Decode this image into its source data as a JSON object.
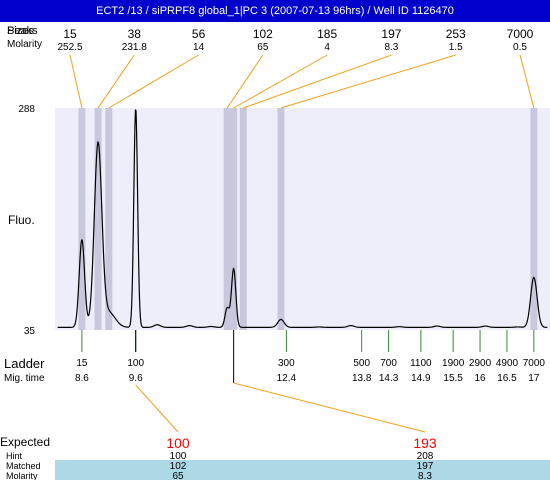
{
  "window": {
    "title": "ECT2 /13 / siPRPF8 global_1|PC 3 (2007-07-13 96hrs) / Well ID 1126470"
  },
  "header_rows": {
    "peaks_label": "Peaks",
    "sizes_label": "Sizes",
    "molarity_label": "Molarity"
  },
  "left_labels": {
    "y_axis": "Fluo.",
    "ladder": "Ladder",
    "mig_time": "Mig. time"
  },
  "bottom_rows": {
    "expected_label": "Expected",
    "hint_label": "Hint",
    "matched_label": "Matched",
    "molarity_label": "Molarity"
  },
  "colors": {
    "title_bar": "#0000cc",
    "plot_background": "#eeeefa",
    "peak_band": "#c8c8dc",
    "connector": "#f0a020",
    "ladder_tick": "#2e8b2e",
    "expected_value": "#ff0000",
    "matched_band": "#add8e6",
    "trace": "#000000"
  },
  "chart_data": {
    "type": "line",
    "ylabel": "Fluo.",
    "ylim": [
      35,
      288
    ],
    "y_ticks": [
      "288",
      "35"
    ],
    "xlim": [
      8.1,
      17.3
    ],
    "peaks": [
      {
        "size": "15",
        "molarity": "252.5",
        "time": 8.6
      },
      {
        "size": "38",
        "molarity": "231.8",
        "time": 8.9
      },
      {
        "size": "56",
        "molarity": "14",
        "time": 9.1
      },
      {
        "size": "102",
        "molarity": "65",
        "time": 11.3
      },
      {
        "size": "185",
        "molarity": "4",
        "time": 11.42
      },
      {
        "size": "197",
        "molarity": "8.3",
        "time": 11.6
      },
      {
        "size": "253",
        "molarity": "1.5",
        "time": 12.3
      },
      {
        "size": "7000",
        "molarity": "0.5",
        "time": 17.0
      }
    ],
    "ladder": [
      {
        "size": "15",
        "time_label": "8.6",
        "time": 8.6
      },
      {
        "size": "100",
        "time_label": "9.6",
        "time": 9.6
      },
      {
        "size": "300",
        "time_label": "12.4",
        "time": 12.4
      },
      {
        "size": "500",
        "time_label": "13.8",
        "time": 13.8
      },
      {
        "size": "700",
        "time_label": "14.3",
        "time": 14.3
      },
      {
        "size": "1100",
        "time_label": "14.9",
        "time": 14.9
      },
      {
        "size": "1900",
        "time_label": "15.5",
        "time": 15.5
      },
      {
        "size": "2900",
        "time_label": "16",
        "time": 16.0
      },
      {
        "size": "4900",
        "time_label": "16.5",
        "time": 16.5
      },
      {
        "size": "7000",
        "time_label": "17",
        "time": 17.0
      }
    ],
    "trace": {
      "baseline": 38,
      "peaks": [
        {
          "time": 8.6,
          "height": 138,
          "width": 0.05
        },
        {
          "time": 8.9,
          "height": 245,
          "width": 0.07
        },
        {
          "time": 9.1,
          "height": 55,
          "width": 0.12
        },
        {
          "time": 9.6,
          "height": 288,
          "width": 0.035
        },
        {
          "time": 11.3,
          "height": 60,
          "width": 0.04
        },
        {
          "time": 11.42,
          "height": 105,
          "width": 0.04
        },
        {
          "time": 12.3,
          "height": 47,
          "width": 0.06
        },
        {
          "time": 17.0,
          "height": 95,
          "width": 0.06
        }
      ],
      "noise_points": [
        [
          10.0,
          41
        ],
        [
          10.6,
          40
        ],
        [
          11.0,
          39
        ],
        [
          13.0,
          38.5
        ],
        [
          13.6,
          40
        ],
        [
          14.5,
          38.8
        ],
        [
          15.2,
          39.5
        ],
        [
          16.1,
          39.5
        ],
        [
          16.7,
          38.5
        ]
      ]
    },
    "expected": [
      {
        "expected": "100",
        "hint": "100",
        "matched": "102",
        "molarity": "65",
        "time": 9.6
      },
      {
        "expected": "193",
        "hint": "208",
        "matched": "197",
        "molarity": "8.3",
        "time": 11.42
      }
    ]
  }
}
